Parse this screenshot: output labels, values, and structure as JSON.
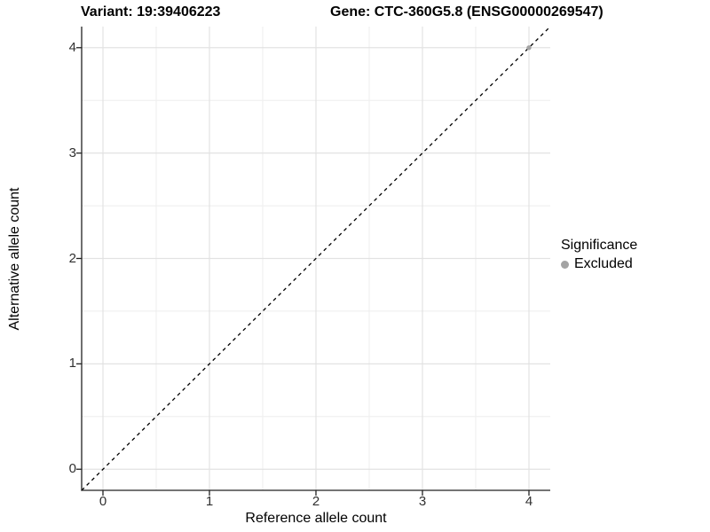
{
  "header": {
    "variant_title": "Variant: 19:39406223",
    "gene_title": "Gene: CTC-360G5.8 (ENSG00000269547)"
  },
  "chart_data": {
    "type": "scatter",
    "title_left": "Variant: 19:39406223",
    "title_right": "Gene: CTC-360G5.8 (ENSG00000269547)",
    "xlabel": "Reference allele count",
    "ylabel": "Alternative allele count",
    "xlim": [
      -0.2,
      4.2
    ],
    "ylim": [
      -0.2,
      4.2
    ],
    "xticks": [
      0,
      1,
      2,
      3,
      4
    ],
    "yticks": [
      0,
      1,
      2,
      3,
      4
    ],
    "minor_xticks": [
      0.5,
      1.5,
      2.5,
      3.5
    ],
    "minor_yticks": [
      0.5,
      1.5,
      2.5,
      3.5
    ],
    "grid": true,
    "reference_line": {
      "kind": "abline",
      "slope": 1,
      "intercept": 0,
      "style": "dashed",
      "color": "#000000"
    },
    "series": [
      {
        "name": "Excluded",
        "color": "#a3a3a3",
        "points": [
          {
            "x": 4,
            "y": 4
          }
        ]
      }
    ],
    "legend": {
      "position": "right",
      "title": "Significance",
      "items": [
        {
          "label": "Excluded",
          "color": "#a3a3a3",
          "marker": "dot"
        }
      ]
    },
    "style": {
      "major_grid_color": "#e2e2e2",
      "minor_grid_color": "#eeeeee",
      "axis_color": "#222222",
      "background": "#ffffff"
    }
  }
}
